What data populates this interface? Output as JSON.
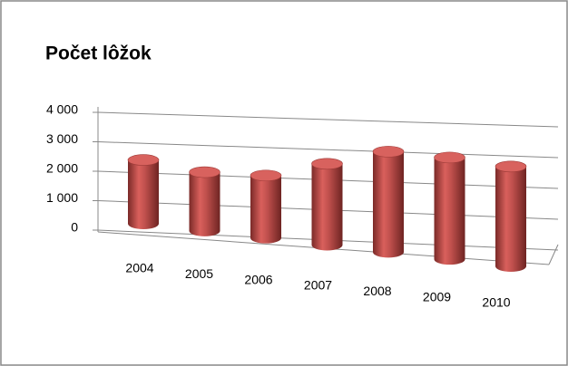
{
  "chart_data": {
    "type": "bar3d",
    "title": "Počet lôžok",
    "categories": [
      "2004",
      "2005",
      "2006",
      "2007",
      "2008",
      "2009",
      "2010"
    ],
    "values": [
      2200,
      2000,
      2100,
      2700,
      3300,
      3300,
      3200
    ],
    "color": "#c0504d",
    "ylim": [
      0,
      4000
    ],
    "yticks": [
      0,
      {
        "value": 1000,
        "label": "1 000"
      },
      {
        "value": 2000,
        "label": "2 000"
      },
      {
        "value": 3000,
        "label": "3 000"
      },
      {
        "value": 4000,
        "label": "4 000"
      }
    ],
    "grid": true
  }
}
